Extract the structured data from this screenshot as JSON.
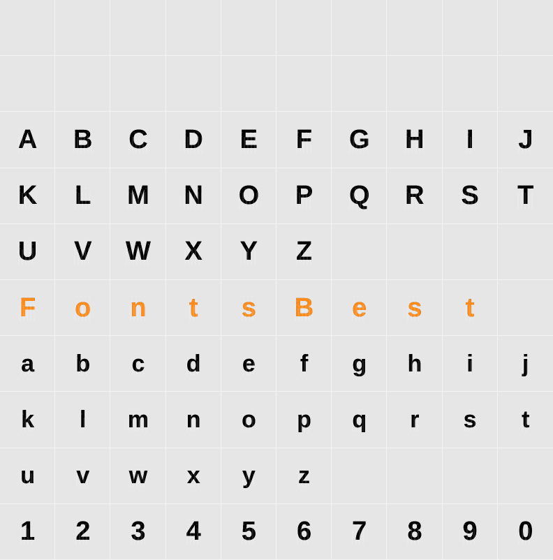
{
  "grid": {
    "columns": 10,
    "rows": 10,
    "cell_width": 79.2,
    "cell_height": 80.2,
    "background_color": "#e6e6e6",
    "divider_color": "#f4f4f4",
    "glyph_color_default": "#000000",
    "glyph_color_highlight": "#ff8c1a",
    "glyph_fontsize_upper": 38,
    "glyph_fontsize_lower": 34,
    "glyph_fontsize_number": 38,
    "font_weight": 900,
    "decorative_style": "stars-and-stripes"
  },
  "rows": [
    {
      "cells": [
        null,
        null,
        null,
        null,
        null,
        null,
        null,
        null,
        null,
        null
      ]
    },
    {
      "cells": [
        null,
        null,
        null,
        null,
        null,
        null,
        null,
        null,
        null,
        null
      ]
    },
    {
      "cells": [
        {
          "text": "A",
          "kind": "upper"
        },
        {
          "text": "B",
          "kind": "upper"
        },
        {
          "text": "C",
          "kind": "upper"
        },
        {
          "text": "D",
          "kind": "upper"
        },
        {
          "text": "E",
          "kind": "upper"
        },
        {
          "text": "F",
          "kind": "upper"
        },
        {
          "text": "G",
          "kind": "upper"
        },
        {
          "text": "H",
          "kind": "upper"
        },
        {
          "text": "I",
          "kind": "upper"
        },
        {
          "text": "J",
          "kind": "upper"
        }
      ]
    },
    {
      "cells": [
        {
          "text": "K",
          "kind": "upper"
        },
        {
          "text": "L",
          "kind": "upper"
        },
        {
          "text": "M",
          "kind": "upper"
        },
        {
          "text": "N",
          "kind": "upper"
        },
        {
          "text": "O",
          "kind": "upper"
        },
        {
          "text": "P",
          "kind": "upper"
        },
        {
          "text": "Q",
          "kind": "upper"
        },
        {
          "text": "R",
          "kind": "upper"
        },
        {
          "text": "S",
          "kind": "upper"
        },
        {
          "text": "T",
          "kind": "upper"
        }
      ]
    },
    {
      "cells": [
        {
          "text": "U",
          "kind": "upper"
        },
        {
          "text": "V",
          "kind": "upper"
        },
        {
          "text": "W",
          "kind": "upper"
        },
        {
          "text": "X",
          "kind": "upper"
        },
        {
          "text": "Y",
          "kind": "upper"
        },
        {
          "text": "Z",
          "kind": "upper"
        },
        null,
        null,
        null,
        null
      ]
    },
    {
      "cells": [
        {
          "text": "F",
          "kind": "highlight"
        },
        {
          "text": "o",
          "kind": "highlight"
        },
        {
          "text": "n",
          "kind": "highlight"
        },
        {
          "text": "t",
          "kind": "highlight"
        },
        {
          "text": "s",
          "kind": "highlight"
        },
        {
          "text": "B",
          "kind": "highlight"
        },
        {
          "text": "e",
          "kind": "highlight"
        },
        {
          "text": "s",
          "kind": "highlight"
        },
        {
          "text": "t",
          "kind": "highlight"
        },
        null
      ]
    },
    {
      "cells": [
        {
          "text": "a",
          "kind": "lower"
        },
        {
          "text": "b",
          "kind": "lower"
        },
        {
          "text": "c",
          "kind": "lower"
        },
        {
          "text": "d",
          "kind": "lower"
        },
        {
          "text": "e",
          "kind": "lower"
        },
        {
          "text": "f",
          "kind": "lower"
        },
        {
          "text": "g",
          "kind": "lower"
        },
        {
          "text": "h",
          "kind": "lower"
        },
        {
          "text": "i",
          "kind": "lower"
        },
        {
          "text": "j",
          "kind": "lower"
        }
      ]
    },
    {
      "cells": [
        {
          "text": "k",
          "kind": "lower"
        },
        {
          "text": "l",
          "kind": "lower"
        },
        {
          "text": "m",
          "kind": "lower"
        },
        {
          "text": "n",
          "kind": "lower"
        },
        {
          "text": "o",
          "kind": "lower"
        },
        {
          "text": "p",
          "kind": "lower"
        },
        {
          "text": "q",
          "kind": "lower"
        },
        {
          "text": "r",
          "kind": "lower"
        },
        {
          "text": "s",
          "kind": "lower"
        },
        {
          "text": "t",
          "kind": "lower"
        }
      ]
    },
    {
      "cells": [
        {
          "text": "u",
          "kind": "lower"
        },
        {
          "text": "v",
          "kind": "lower"
        },
        {
          "text": "w",
          "kind": "lower"
        },
        {
          "text": "x",
          "kind": "lower"
        },
        {
          "text": "y",
          "kind": "lower"
        },
        {
          "text": "z",
          "kind": "lower"
        },
        null,
        null,
        null,
        null
      ]
    },
    {
      "cells": [
        {
          "text": "1",
          "kind": "number"
        },
        {
          "text": "2",
          "kind": "number"
        },
        {
          "text": "3",
          "kind": "number"
        },
        {
          "text": "4",
          "kind": "number"
        },
        {
          "text": "5",
          "kind": "number"
        },
        {
          "text": "6",
          "kind": "number"
        },
        {
          "text": "7",
          "kind": "number"
        },
        {
          "text": "8",
          "kind": "number"
        },
        {
          "text": "9",
          "kind": "number"
        },
        {
          "text": "0",
          "kind": "number"
        }
      ]
    }
  ]
}
